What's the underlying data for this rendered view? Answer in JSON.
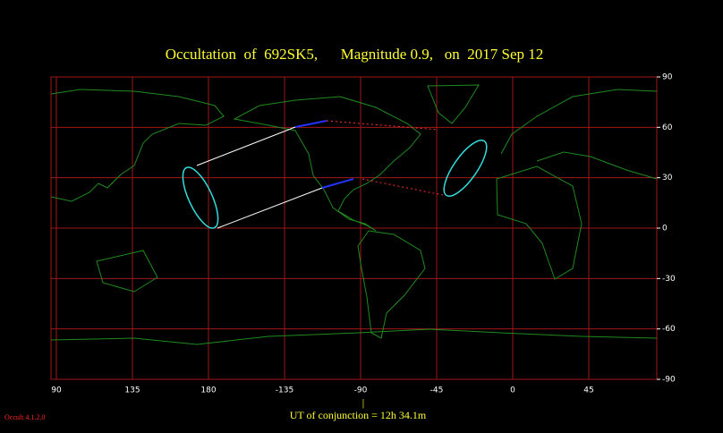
{
  "title": "Occultation  of  692SK5,      Magnitude 0.9,   on  2017 Sep 12",
  "map": {
    "xticks": [
      90,
      135,
      180,
      -135,
      -90,
      -45,
      0,
      45
    ],
    "yticks": [
      90,
      60,
      30,
      0,
      -30,
      -60,
      -90
    ]
  },
  "footer": {
    "marker": "|",
    "conjunction": "UT of conjunction = 12h 34.1m"
  },
  "version": "Occult 4.1.2.0"
}
